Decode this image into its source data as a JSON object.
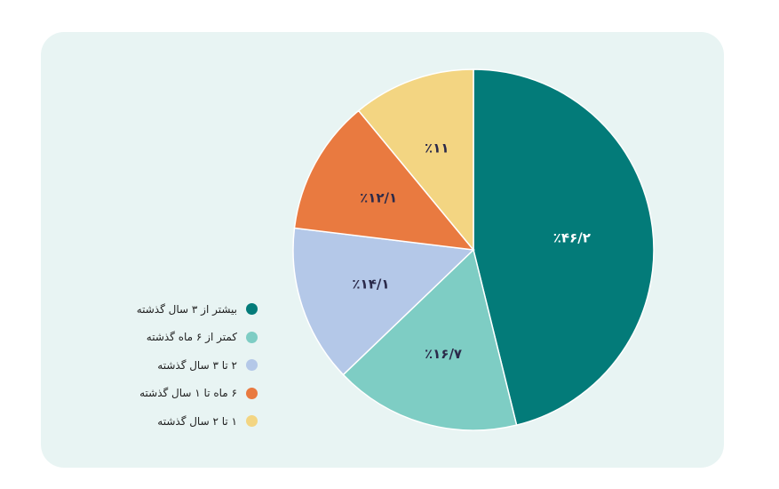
{
  "chart_data": {
    "type": "pie",
    "slices": [
      {
        "label": "بیشتر از ۳ سال گذشته",
        "value": 46.2,
        "display": "٪۴۶/۲",
        "color": "#037b79",
        "text_color": "#ffffff"
      },
      {
        "label": "کمتر از ۶ ماه گذشته",
        "value": 16.7,
        "display": "٪۱۶/۷",
        "color": "#7ecdc4",
        "text_color": "#2b2a4a"
      },
      {
        "label": "۲ تا ۳ سال گذشته",
        "value": 14.1,
        "display": "٪۱۴/۱",
        "color": "#b4c8e8",
        "text_color": "#2b2a4a"
      },
      {
        "label": "۶ ماه تا ۱ سال گذشته",
        "value": 12.1,
        "display": "٪۱۲/۱",
        "color": "#e97a40",
        "text_color": "#2b2a4a"
      },
      {
        "label": "۱ تا ۲ سال گذشته",
        "value": 11,
        "display": "٪۱۱",
        "color": "#f3d582",
        "text_color": "#2b2a4a"
      }
    ],
    "start_angle": "top",
    "direction": "clockwise",
    "legend": "left"
  }
}
